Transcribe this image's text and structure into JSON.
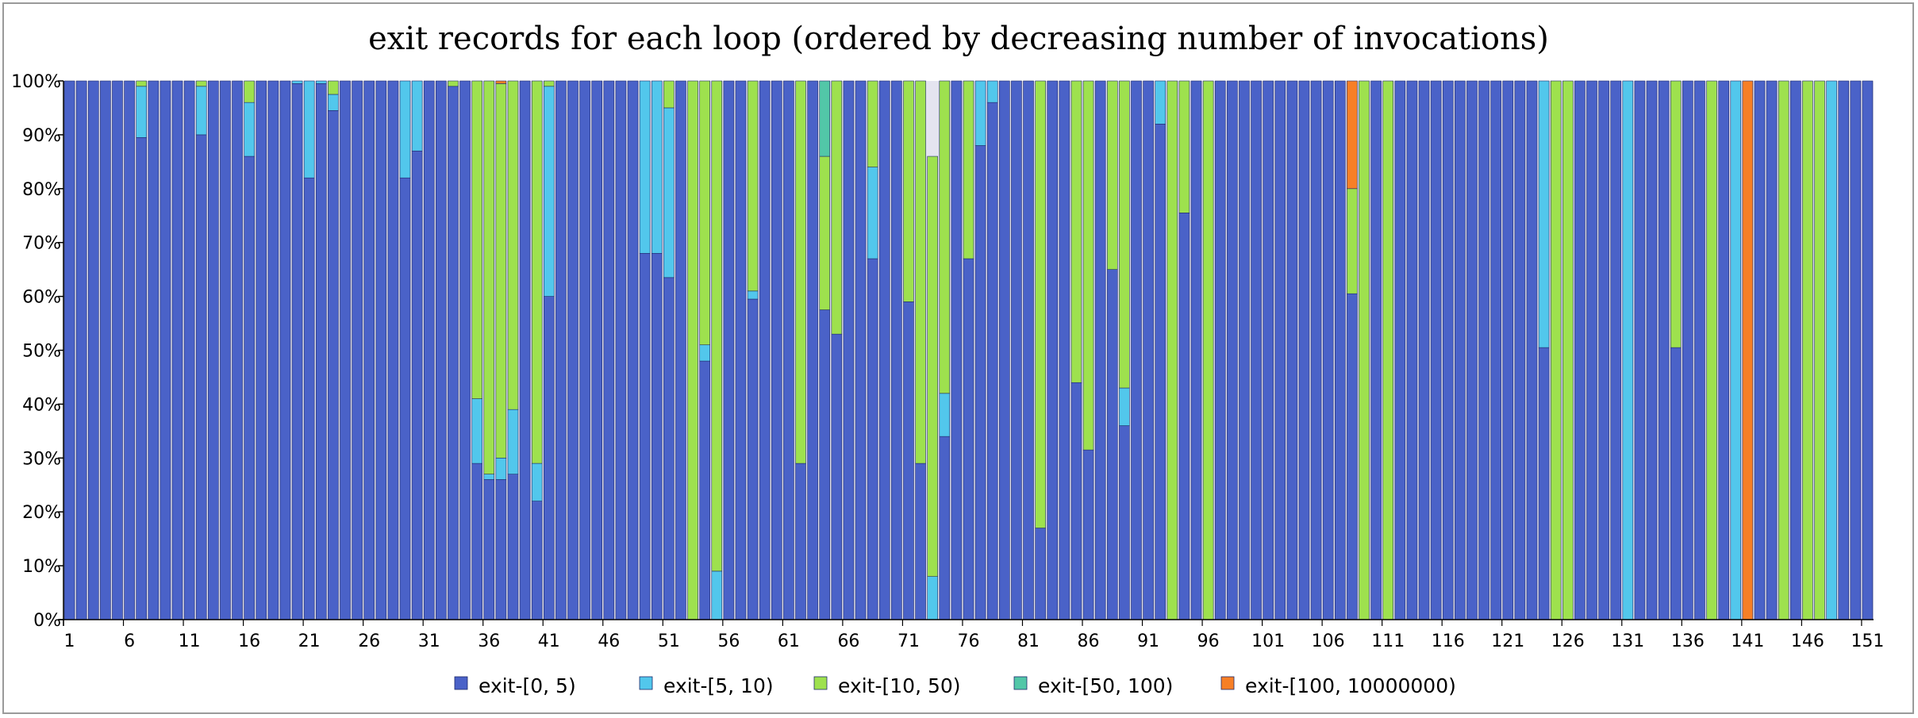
{
  "chart_data": {
    "type": "bar",
    "stacked": "percent",
    "title": "exit records for each loop (ordered by decreasing number of invocations)",
    "xlabel": "",
    "ylabel": "",
    "ylim": [
      0,
      100
    ],
    "y_ticks": [
      "0%",
      "10%",
      "20%",
      "30%",
      "40%",
      "50%",
      "60%",
      "70%",
      "80%",
      "90%",
      "100%"
    ],
    "x_tick_labels": [
      "1",
      "6",
      "11",
      "16",
      "21",
      "26",
      "31",
      "36",
      "41",
      "46",
      "51",
      "56",
      "61",
      "66",
      "71",
      "76",
      "81",
      "86",
      "91",
      "96",
      "101",
      "106",
      "111",
      "116",
      "121",
      "126",
      "131",
      "136",
      "141",
      "146",
      "151"
    ],
    "x_tick_every": 5,
    "n_categories": 151,
    "grid": false,
    "legend_position": "bottom",
    "series_names": [
      "exit-[0, 5)",
      "exit-[5, 10)",
      "exit-[10, 50)",
      "exit-[50, 100)",
      "exit-[100, 10000000)"
    ],
    "colors": [
      "#4a62c8",
      "#52c7ec",
      "#9ee14e",
      "#52c7a8",
      "#f77f26"
    ],
    "bars": [
      [
        100,
        0,
        0,
        0,
        0
      ],
      [
        100,
        0,
        0,
        0,
        0
      ],
      [
        100,
        0,
        0,
        0,
        0
      ],
      [
        100,
        0,
        0,
        0,
        0
      ],
      [
        100,
        0,
        0,
        0,
        0
      ],
      [
        100,
        0,
        0,
        0,
        0
      ],
      [
        89.5,
        9.5,
        1,
        0,
        0
      ],
      [
        100,
        0,
        0,
        0,
        0
      ],
      [
        100,
        0,
        0,
        0,
        0
      ],
      [
        100,
        0,
        0,
        0,
        0
      ],
      [
        100,
        0,
        0,
        0,
        0
      ],
      [
        90,
        9,
        1,
        0,
        0
      ],
      [
        100,
        0,
        0,
        0,
        0
      ],
      [
        100,
        0,
        0,
        0,
        0
      ],
      [
        100,
        0,
        0,
        0,
        0
      ],
      [
        86,
        10,
        4,
        0,
        0
      ],
      [
        100,
        0,
        0,
        0,
        0
      ],
      [
        100,
        0,
        0,
        0,
        0
      ],
      [
        100,
        0,
        0,
        0,
        0
      ],
      [
        99.5,
        0.5,
        0,
        0,
        0
      ],
      [
        82,
        18,
        0,
        0,
        0
      ],
      [
        99.5,
        0.5,
        0,
        0,
        0
      ],
      [
        94.5,
        3,
        2.5,
        0,
        0
      ],
      [
        100,
        0,
        0,
        0,
        0
      ],
      [
        100,
        0,
        0,
        0,
        0
      ],
      [
        100,
        0,
        0,
        0,
        0
      ],
      [
        100,
        0,
        0,
        0,
        0
      ],
      [
        100,
        0,
        0,
        0,
        0
      ],
      [
        82,
        18,
        0,
        0,
        0
      ],
      [
        87,
        13,
        0,
        0,
        0
      ],
      [
        100,
        0,
        0,
        0,
        0
      ],
      [
        100,
        0,
        0,
        0,
        0
      ],
      [
        99,
        0,
        1,
        0,
        0
      ],
      [
        100,
        0,
        0,
        0,
        0
      ],
      [
        29,
        12,
        59,
        0,
        0
      ],
      [
        26,
        1,
        73,
        0,
        0
      ],
      [
        26,
        4,
        69.5,
        0,
        0.5
      ],
      [
        27,
        12,
        61,
        0,
        0
      ],
      [
        100,
        0,
        0,
        0,
        0
      ],
      [
        22,
        7,
        71,
        0,
        0
      ],
      [
        60,
        39,
        1,
        0,
        0
      ],
      [
        100,
        0,
        0,
        0,
        0
      ],
      [
        100,
        0,
        0,
        0,
        0
      ],
      [
        100,
        0,
        0,
        0,
        0
      ],
      [
        100,
        0,
        0,
        0,
        0
      ],
      [
        100,
        0,
        0,
        0,
        0
      ],
      [
        100,
        0,
        0,
        0,
        0
      ],
      [
        100,
        0,
        0,
        0,
        0
      ],
      [
        68,
        32,
        0,
        0,
        0
      ],
      [
        68,
        32,
        0,
        0,
        0
      ],
      [
        63.5,
        31.5,
        5,
        0,
        0
      ],
      [
        100,
        0,
        0,
        0,
        0
      ],
      [
        0,
        0,
        100,
        0,
        0
      ],
      [
        48,
        3,
        49,
        0,
        0
      ],
      [
        0,
        9,
        91,
        0,
        0
      ],
      [
        100,
        0,
        0,
        0,
        0
      ],
      [
        100,
        0,
        0,
        0,
        0
      ],
      [
        59.5,
        1.5,
        39,
        0,
        0
      ],
      [
        100,
        0,
        0,
        0,
        0
      ],
      [
        100,
        0,
        0,
        0,
        0
      ],
      [
        100,
        0,
        0,
        0,
        0
      ],
      [
        29,
        0,
        71,
        0,
        0
      ],
      [
        100,
        0,
        0,
        0,
        0
      ],
      [
        57.5,
        0,
        28.5,
        14,
        0
      ],
      [
        53,
        0,
        47,
        0,
        0
      ],
      [
        100,
        0,
        0,
        0,
        0
      ],
      [
        100,
        0,
        0,
        0,
        0
      ],
      [
        67,
        17,
        16,
        0,
        0
      ],
      [
        100,
        0,
        0,
        0,
        0
      ],
      [
        100,
        0,
        0,
        0,
        0
      ],
      [
        59,
        0,
        41,
        0,
        0
      ],
      [
        29,
        0,
        71,
        0,
        0
      ],
      [
        0,
        8,
        78,
        0,
        0
      ],
      [
        34,
        8,
        58,
        0,
        0
      ],
      [
        100,
        0,
        0,
        0,
        0
      ],
      [
        67,
        0,
        33,
        0,
        0
      ],
      [
        88,
        12,
        0,
        0,
        0
      ],
      [
        96,
        4,
        0,
        0,
        0
      ],
      [
        100,
        0,
        0,
        0,
        0
      ],
      [
        100,
        0,
        0,
        0,
        0
      ],
      [
        100,
        0,
        0,
        0,
        0
      ],
      [
        17,
        0,
        83,
        0,
        0
      ],
      [
        100,
        0,
        0,
        0,
        0
      ],
      [
        100,
        0,
        0,
        0,
        0
      ],
      [
        44,
        0,
        56,
        0,
        0
      ],
      [
        31.5,
        0,
        68.5,
        0,
        0
      ],
      [
        100,
        0,
        0,
        0,
        0
      ],
      [
        65,
        0,
        35,
        0,
        0
      ],
      [
        36,
        7,
        57,
        0,
        0
      ],
      [
        100,
        0,
        0,
        0,
        0
      ],
      [
        100,
        0,
        0,
        0,
        0
      ],
      [
        92,
        8,
        0,
        0,
        0
      ],
      [
        0,
        0,
        100,
        0,
        0
      ],
      [
        75.5,
        0,
        24.5,
        0,
        0
      ],
      [
        100,
        0,
        0,
        0,
        0
      ],
      [
        0,
        0,
        100,
        0,
        0
      ],
      [
        100,
        0,
        0,
        0,
        0
      ],
      [
        100,
        0,
        0,
        0,
        0
      ],
      [
        100,
        0,
        0,
        0,
        0
      ],
      [
        100,
        0,
        0,
        0,
        0
      ],
      [
        100,
        0,
        0,
        0,
        0
      ],
      [
        100,
        0,
        0,
        0,
        0
      ],
      [
        100,
        0,
        0,
        0,
        0
      ],
      [
        100,
        0,
        0,
        0,
        0
      ],
      [
        100,
        0,
        0,
        0,
        0
      ],
      [
        100,
        0,
        0,
        0,
        0
      ],
      [
        100,
        0,
        0,
        0,
        0
      ],
      [
        60.5,
        0,
        19.5,
        0,
        20
      ],
      [
        0,
        0,
        100,
        0,
        0
      ],
      [
        100,
        0,
        0,
        0,
        0
      ],
      [
        0,
        0,
        100,
        0,
        0
      ],
      [
        100,
        0,
        0,
        0,
        0
      ],
      [
        100,
        0,
        0,
        0,
        0
      ],
      [
        100,
        0,
        0,
        0,
        0
      ],
      [
        100,
        0,
        0,
        0,
        0
      ],
      [
        100,
        0,
        0,
        0,
        0
      ],
      [
        100,
        0,
        0,
        0,
        0
      ],
      [
        100,
        0,
        0,
        0,
        0
      ],
      [
        100,
        0,
        0,
        0,
        0
      ],
      [
        100,
        0,
        0,
        0,
        0
      ],
      [
        100,
        0,
        0,
        0,
        0
      ],
      [
        100,
        0,
        0,
        0,
        0
      ],
      [
        100,
        0,
        0,
        0,
        0
      ],
      [
        50.5,
        49.5,
        0,
        0,
        0
      ],
      [
        0,
        0,
        100,
        0,
        0
      ],
      [
        0,
        0,
        100,
        0,
        0
      ],
      [
        100,
        0,
        0,
        0,
        0
      ],
      [
        100,
        0,
        0,
        0,
        0
      ],
      [
        100,
        0,
        0,
        0,
        0
      ],
      [
        100,
        0,
        0,
        0,
        0
      ],
      [
        0,
        100,
        0,
        0,
        0
      ],
      [
        100,
        0,
        0,
        0,
        0
      ],
      [
        100,
        0,
        0,
        0,
        0
      ],
      [
        100,
        0,
        0,
        0,
        0
      ],
      [
        50.5,
        0,
        49.5,
        0,
        0
      ],
      [
        100,
        0,
        0,
        0,
        0
      ],
      [
        100,
        0,
        0,
        0,
        0
      ],
      [
        0,
        0,
        100,
        0,
        0
      ],
      [
        100,
        0,
        0,
        0,
        0
      ],
      [
        0,
        100,
        0,
        0,
        0
      ],
      [
        0,
        0,
        0,
        0,
        100
      ],
      [
        100,
        0,
        0,
        0,
        0
      ],
      [
        100,
        0,
        0,
        0,
        0
      ],
      [
        0,
        0,
        100,
        0,
        0
      ],
      [
        100,
        0,
        0,
        0,
        0
      ],
      [
        0,
        0,
        100,
        0,
        0
      ],
      [
        0,
        0,
        100,
        0,
        0
      ],
      [
        0,
        100,
        0,
        0,
        0
      ],
      [
        100,
        0,
        0,
        0,
        0
      ],
      [
        100,
        0,
        0,
        0,
        0
      ],
      [
        100,
        0,
        0,
        0,
        0
      ]
    ]
  }
}
